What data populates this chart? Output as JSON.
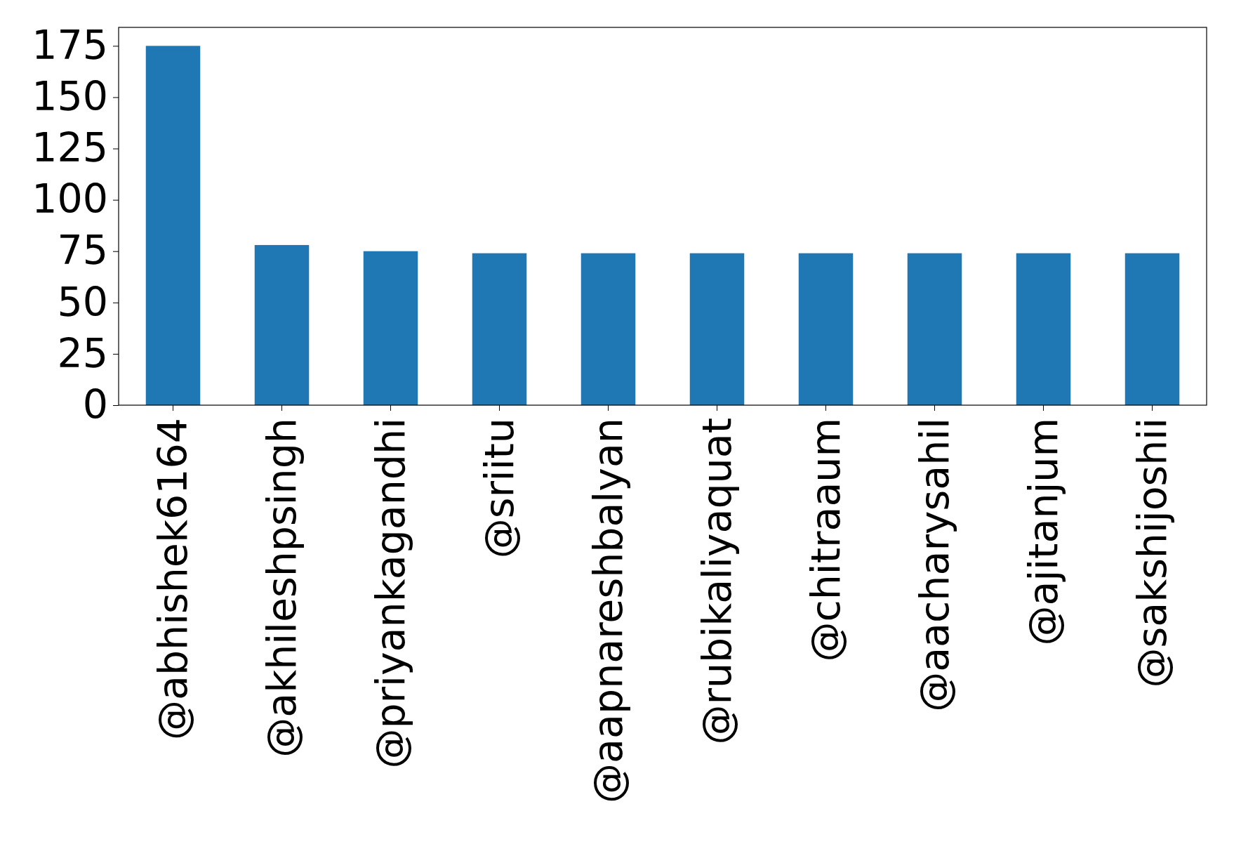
{
  "chart_data": {
    "type": "bar",
    "categories": [
      "@abhishek6164",
      "@akhileshpsingh",
      "@priyankagandhi",
      "@sriitu",
      "@aapnareshbalyan",
      "@rubikaliyaquat",
      "@chitraaum",
      "@aacharysahil",
      "@ajitanjum",
      "@sakshijoshii"
    ],
    "values": [
      175,
      78,
      75,
      74,
      74,
      74,
      74,
      74,
      74,
      74
    ],
    "color": "#1f77b4",
    "ylim": [
      0,
      184
    ],
    "yticks": [
      0,
      25,
      50,
      75,
      100,
      125,
      150,
      175
    ],
    "grid": false
  }
}
